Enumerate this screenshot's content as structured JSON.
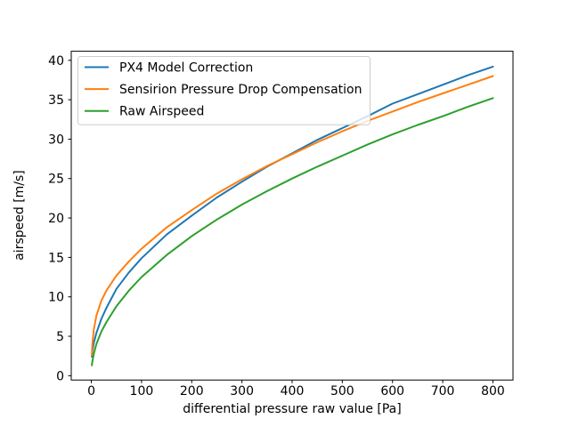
{
  "chart_data": {
    "type": "line",
    "x": [
      1,
      2,
      5,
      10,
      20,
      30,
      50,
      75,
      100,
      150,
      200,
      250,
      300,
      350,
      400,
      450,
      500,
      550,
      600,
      650,
      700,
      750,
      800
    ],
    "series": [
      {
        "name": "PX4 Model Correction",
        "color": "#1f77b4",
        "values": [
          2.4,
          3.1,
          4.2,
          5.4,
          7.2,
          8.6,
          11.0,
          13.1,
          14.9,
          17.9,
          20.3,
          22.6,
          24.6,
          26.5,
          28.2,
          29.9,
          31.4,
          32.9,
          34.5,
          35.7,
          36.9,
          38.1,
          39.2
        ]
      },
      {
        "name": "Sensirion Pressure Drop Compensation",
        "color": "#ff7f0e",
        "values": [
          2.6,
          4.0,
          5.9,
          7.6,
          9.5,
          10.8,
          12.7,
          14.5,
          16.1,
          18.8,
          21.0,
          23.1,
          24.9,
          26.6,
          28.1,
          29.6,
          31.0,
          32.3,
          33.5,
          34.7,
          35.8,
          36.9,
          38.0
        ]
      },
      {
        "name": "Raw Airspeed",
        "color": "#2ca02c",
        "values": [
          1.3,
          1.8,
          2.8,
          4.0,
          5.6,
          6.8,
          8.8,
          10.8,
          12.5,
          15.3,
          17.7,
          19.8,
          21.7,
          23.4,
          25.0,
          26.5,
          27.9,
          29.3,
          30.6,
          31.8,
          32.9,
          34.1,
          35.2
        ]
      }
    ],
    "title": "",
    "xlabel": "differential pressure raw value [Pa]",
    "ylabel": "airspeed [m/s]",
    "xlim": [
      -40,
      840
    ],
    "ylim": [
      -0.55,
      41.15
    ],
    "xticks": [
      0,
      100,
      200,
      300,
      400,
      500,
      600,
      700,
      800
    ],
    "yticks": [
      0,
      5,
      10,
      15,
      20,
      25,
      30,
      35,
      40
    ],
    "grid": false,
    "legend_position": "upper left",
    "colors": {
      "background": "#ffffff",
      "axis": "#000000",
      "tick_label": "#000000",
      "legend_border": "#cccccc",
      "legend_background": "#ffffff"
    }
  }
}
